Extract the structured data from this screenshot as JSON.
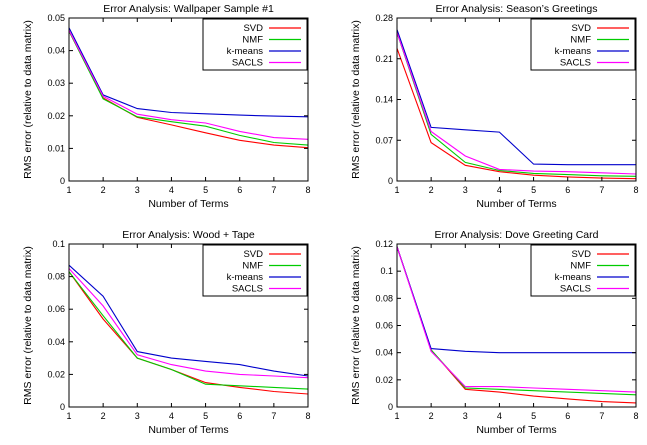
{
  "chart_data": [
    {
      "type": "line",
      "title": "Error Analysis: Wallpaper Sample #1",
      "xlabel": "Number of Terms",
      "ylabel": "RMS error (relative to data matrix)",
      "xlim": [
        1,
        8
      ],
      "ylim": [
        0,
        0.05
      ],
      "x_ticks": [
        "1",
        "2",
        "3",
        "4",
        "5",
        "6",
        "7",
        "8"
      ],
      "y_ticks": [
        "0",
        "0.01",
        "0.02",
        "0.03",
        "0.04",
        "0.05"
      ],
      "legend_position": "top-right",
      "grid": false,
      "x": [
        1,
        2,
        3,
        4,
        5,
        6,
        7,
        8
      ],
      "series": [
        {
          "name": "SVD",
          "color": "#ff0000",
          "values": [
            0.046,
            0.0255,
            0.0195,
            0.0172,
            0.0148,
            0.0125,
            0.011,
            0.0102
          ]
        },
        {
          "name": "NMF",
          "color": "#00cc00",
          "values": [
            0.046,
            0.0252,
            0.0197,
            0.0182,
            0.0168,
            0.014,
            0.0118,
            0.011
          ]
        },
        {
          "name": "k-means",
          "color": "#0000cc",
          "values": [
            0.047,
            0.0264,
            0.0222,
            0.021,
            0.0206,
            0.0202,
            0.0199,
            0.0197
          ]
        },
        {
          "name": "SACLS",
          "color": "#ff00ff",
          "values": [
            0.0462,
            0.026,
            0.0205,
            0.0188,
            0.0178,
            0.0152,
            0.0133,
            0.0128
          ]
        }
      ]
    },
    {
      "type": "line",
      "title": "Error Analysis: Season’s Greetings",
      "xlabel": "Number of Terms",
      "ylabel": "RMS error (relative to data matrix)",
      "xlim": [
        1,
        8
      ],
      "ylim": [
        0,
        0.28
      ],
      "x_ticks": [
        "1",
        "2",
        "3",
        "4",
        "5",
        "6",
        "7",
        "8"
      ],
      "y_ticks": [
        "0",
        "0.07",
        "0.14",
        "0.21",
        "0.28"
      ],
      "legend_position": "top-right",
      "grid": false,
      "x": [
        1,
        2,
        3,
        4,
        5,
        6,
        7,
        8
      ],
      "series": [
        {
          "name": "SVD",
          "color": "#ff0000",
          "values": [
            0.228,
            0.066,
            0.027,
            0.016,
            0.01,
            0.007,
            0.005,
            0.004
          ]
        },
        {
          "name": "NMF",
          "color": "#00cc00",
          "values": [
            0.255,
            0.08,
            0.032,
            0.018,
            0.013,
            0.011,
            0.009,
            0.008
          ]
        },
        {
          "name": "k-means",
          "color": "#0000cc",
          "values": [
            0.26,
            0.092,
            0.088,
            0.084,
            0.029,
            0.028,
            0.028,
            0.028
          ]
        },
        {
          "name": "SACLS",
          "color": "#ff00ff",
          "values": [
            0.255,
            0.085,
            0.043,
            0.02,
            0.017,
            0.016,
            0.014,
            0.012
          ]
        }
      ]
    },
    {
      "type": "line",
      "title": "Error Analysis: Wood + Tape",
      "xlabel": "Number of Terms",
      "ylabel": "RMS error (relative to data matrix)",
      "xlim": [
        1,
        8
      ],
      "ylim": [
        0,
        0.1
      ],
      "x_ticks": [
        "1",
        "2",
        "3",
        "4",
        "5",
        "6",
        "7",
        "8"
      ],
      "y_ticks": [
        "0",
        "0.02",
        "0.04",
        "0.06",
        "0.08",
        "0.1"
      ],
      "legend_position": "top-right",
      "grid": false,
      "x": [
        1,
        2,
        3,
        4,
        5,
        6,
        7,
        8
      ],
      "series": [
        {
          "name": "SVD",
          "color": "#ff0000",
          "values": [
            0.083,
            0.054,
            0.03,
            0.023,
            0.015,
            0.012,
            0.0095,
            0.008
          ]
        },
        {
          "name": "NMF",
          "color": "#00cc00",
          "values": [
            0.083,
            0.056,
            0.03,
            0.023,
            0.014,
            0.013,
            0.012,
            0.011
          ]
        },
        {
          "name": "k-means",
          "color": "#0000cc",
          "values": [
            0.087,
            0.068,
            0.034,
            0.03,
            0.028,
            0.026,
            0.022,
            0.019
          ]
        },
        {
          "name": "SACLS",
          "color": "#ff00ff",
          "values": [
            0.085,
            0.062,
            0.032,
            0.026,
            0.022,
            0.02,
            0.019,
            0.018
          ]
        }
      ]
    },
    {
      "type": "line",
      "title": "Error Analysis: Dove Greeting Card",
      "xlabel": "Number of Terms",
      "ylabel": "RMS error (relative to data matrix)",
      "xlim": [
        1,
        8
      ],
      "ylim": [
        0,
        0.12
      ],
      "x_ticks": [
        "1",
        "2",
        "3",
        "4",
        "5",
        "6",
        "7",
        "8"
      ],
      "y_ticks": [
        "0",
        "0.02",
        "0.04",
        "0.06",
        "0.08",
        "0.1",
        "0.12"
      ],
      "legend_position": "top-right",
      "grid": false,
      "x": [
        1,
        2,
        3,
        4,
        5,
        6,
        7,
        8
      ],
      "series": [
        {
          "name": "SVD",
          "color": "#ff0000",
          "values": [
            0.118,
            0.042,
            0.013,
            0.011,
            0.008,
            0.006,
            0.004,
            0.003
          ]
        },
        {
          "name": "NMF",
          "color": "#00cc00",
          "values": [
            0.118,
            0.042,
            0.014,
            0.013,
            0.012,
            0.011,
            0.01,
            0.009
          ]
        },
        {
          "name": "k-means",
          "color": "#0000cc",
          "values": [
            0.118,
            0.043,
            0.041,
            0.04,
            0.04,
            0.04,
            0.04,
            0.04
          ]
        },
        {
          "name": "SACLS",
          "color": "#ff00ff",
          "values": [
            0.118,
            0.041,
            0.015,
            0.015,
            0.014,
            0.013,
            0.012,
            0.011
          ]
        }
      ]
    }
  ]
}
